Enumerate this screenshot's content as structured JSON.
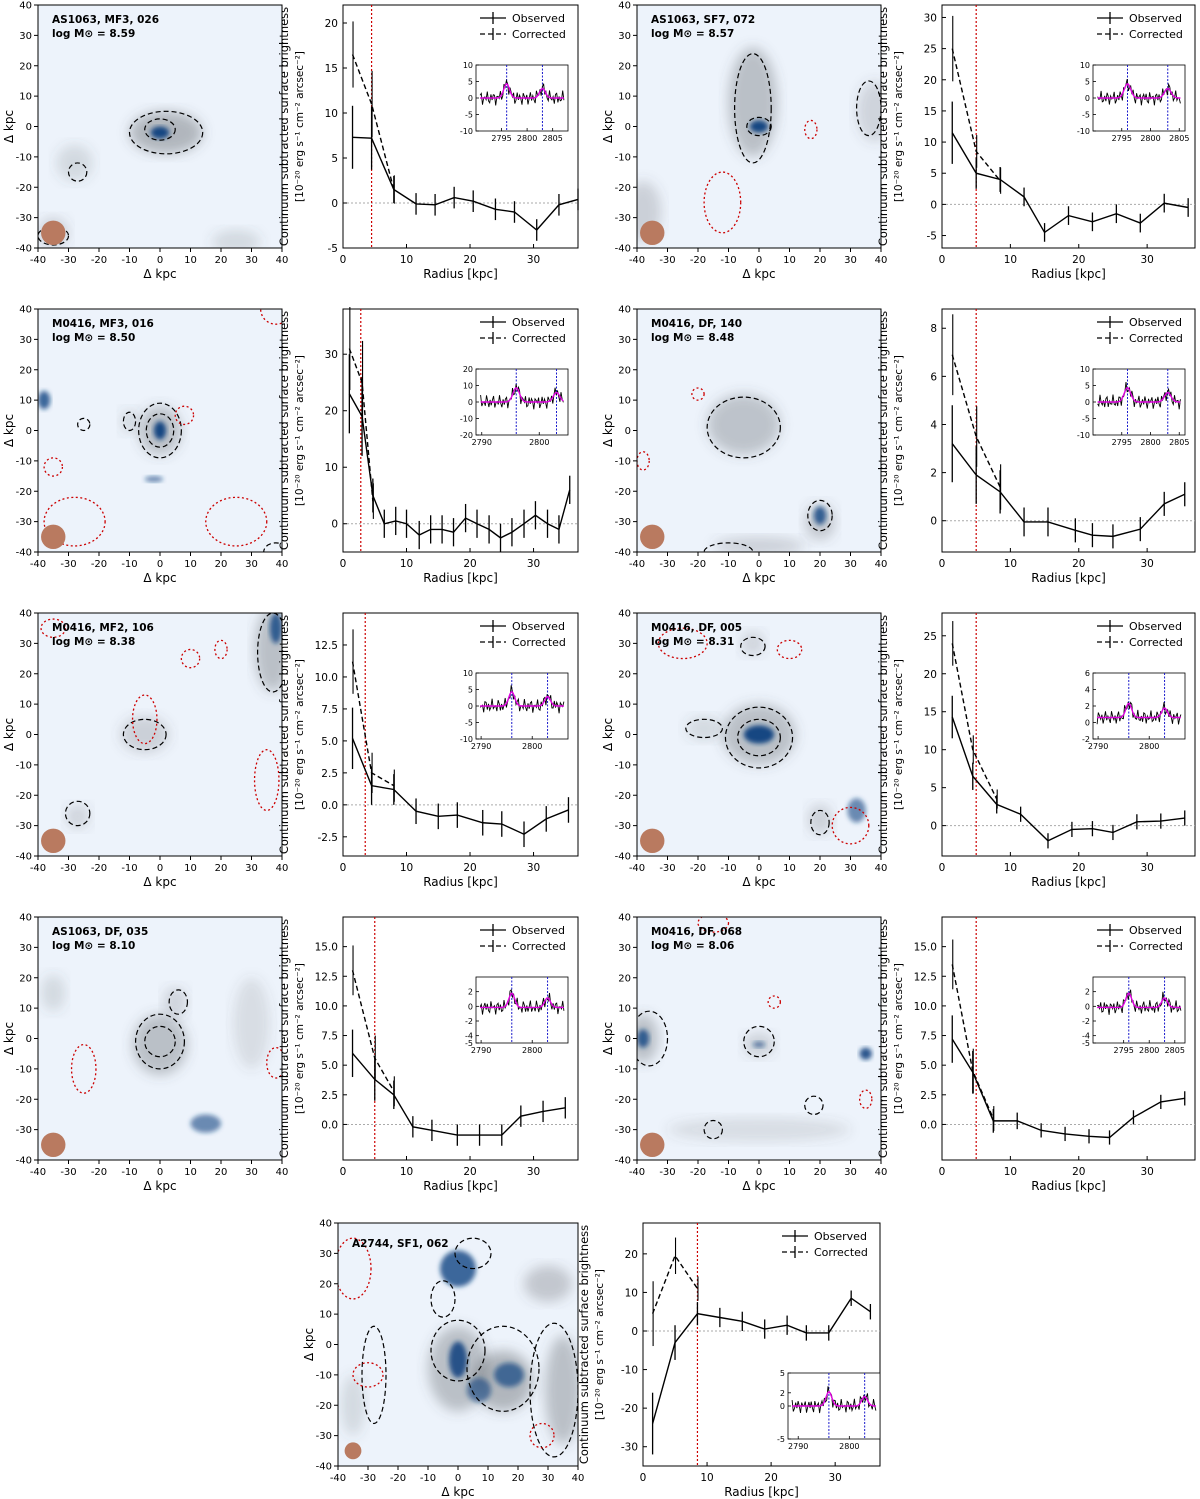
{
  "figure": {
    "map_xlabel": "Δ kpc",
    "map_ylabel": "Δ kpc",
    "profile_xlabel": "Radius [kpc]",
    "profile_ylabel_line1": "Continuum subtracted surface brightness",
    "profile_ylabel_line2": "[10⁻²⁰ erg s⁻¹ cm⁻² arcsec⁻²]",
    "legend_observed": "Observed",
    "legend_corrected": "Corrected",
    "map_ticks": [
      "-40",
      "-30",
      "-20",
      "-10",
      "0",
      "10",
      "20",
      "30",
      "40"
    ],
    "colors": {
      "observed": "#000000",
      "corrected": "#000000",
      "psf_line": "#cc0000",
      "zero_line": "#aaaaaa",
      "psf_disk": "#b97a60",
      "inset_model": "#e000e0",
      "inset_line_markers": "#1a1acc",
      "map_background": "#edf3fb"
    }
  },
  "panels": [
    {
      "name": "AS1063, MF3, 026",
      "mass": "log M⊙ = 8.59"
    },
    {
      "name": "AS1063, SF7, 072",
      "mass": "log M⊙ = 8.57"
    },
    {
      "name": "M0416, MF3, 016",
      "mass": "log M⊙ = 8.50"
    },
    {
      "name": "M0416, DF, 140",
      "mass": "log M⊙ = 8.48"
    },
    {
      "name": "M0416, MF2, 106",
      "mass": "log M⊙ = 8.38"
    },
    {
      "name": "M0416, DF, 005",
      "mass": "log M⊙ = 8.31"
    },
    {
      "name": "AS1063, DF, 035",
      "mass": "log M⊙ = 8.10"
    },
    {
      "name": "M0416, DF, 068",
      "mass": "log M⊙ = 8.06"
    },
    {
      "name": "A2744, SF1, 062",
      "mass": ""
    }
  ],
  "chart_data": [
    {
      "type": "line",
      "panel": "AS1063, MF3, 026",
      "xlim": [
        0,
        37
      ],
      "ylim": [
        -5,
        22
      ],
      "yticks": [
        -5,
        0,
        5,
        10,
        15,
        20
      ],
      "xticks": [
        0,
        10,
        20,
        30
      ],
      "psf_radius": 4.5,
      "x": [
        1.5,
        4.5,
        8,
        11.5,
        14.5,
        17.5,
        20.5,
        24,
        27,
        30.5,
        34,
        37
      ],
      "observed": [
        7.3,
        7.2,
        1.5,
        -0.1,
        -0.2,
        0.6,
        0.2,
        -0.7,
        -1.0,
        -3.0,
        -0.2,
        0.4
      ],
      "observed_err": [
        3.5,
        3.5,
        1.5,
        1.2,
        1.2,
        1.2,
        1.2,
        1.2,
        1.2,
        1.2,
        1.2,
        1.2
      ],
      "corrected": [
        16.5,
        11.0,
        1.5
      ],
      "inset": {
        "xlim": [
          2790,
          2808
        ],
        "ylim": [
          -10,
          10
        ],
        "yticks": [
          -10,
          -5,
          0,
          5,
          10
        ],
        "xticks": [
          2795,
          2800,
          2805
        ],
        "lines": [
          2796,
          2803
        ]
      }
    },
    {
      "type": "line",
      "panel": "AS1063, SF7, 072",
      "xlim": [
        0,
        37
      ],
      "ylim": [
        -7,
        32
      ],
      "yticks": [
        -5,
        0,
        5,
        10,
        15,
        20,
        25,
        30
      ],
      "xticks": [
        0,
        10,
        20,
        30
      ],
      "psf_radius": 5.0,
      "x": [
        1.5,
        5,
        8.5,
        12,
        15,
        18.5,
        22,
        25.5,
        29,
        32.5,
        36
      ],
      "observed": [
        11.5,
        5.0,
        4.0,
        1.2,
        -4.5,
        -1.8,
        -2.8,
        -1.5,
        -3.0,
        0.2,
        -0.5
      ],
      "observed_err": [
        5.0,
        2.5,
        2.0,
        1.5,
        1.5,
        1.5,
        1.5,
        1.5,
        1.5,
        1.5,
        1.5
      ],
      "corrected": [
        25.0,
        8.5,
        3.8
      ],
      "inset": {
        "xlim": [
          2790,
          2806
        ],
        "ylim": [
          -10,
          10
        ],
        "yticks": [
          -10,
          -5,
          0,
          5,
          10
        ],
        "xticks": [
          2795,
          2800,
          2805
        ],
        "lines": [
          2796,
          2803
        ]
      }
    },
    {
      "type": "line",
      "panel": "M0416, MF3, 016",
      "xlim": [
        0,
        37
      ],
      "ylim": [
        -5,
        38
      ],
      "yticks": [
        0,
        10,
        20,
        30
      ],
      "xticks": [
        0,
        10,
        20,
        30
      ],
      "psf_radius": 2.8,
      "x": [
        1,
        3,
        4.7,
        6.5,
        8.3,
        10,
        12,
        13.8,
        15.6,
        17.4,
        19.3,
        21.1,
        23,
        24.8,
        26.6,
        28.5,
        30.3,
        32.2,
        34,
        35.7
      ],
      "observed": [
        23,
        19,
        5,
        0,
        0.5,
        0,
        -2,
        -1,
        -1,
        -1.5,
        1,
        0,
        -1,
        -2.5,
        -1.5,
        0,
        1.5,
        0,
        -1,
        6
      ],
      "observed_err": [
        7,
        7,
        3,
        2.5,
        2.5,
        2.5,
        2.5,
        2.5,
        2.5,
        2.5,
        2.5,
        2.5,
        2.5,
        2.5,
        2.5,
        2.5,
        2.5,
        2.5,
        2.5,
        2.5
      ],
      "corrected": [
        31,
        25,
        4
      ],
      "inset": {
        "xlim": [
          2789,
          2805
        ],
        "ylim": [
          -20,
          20
        ],
        "yticks": [
          -20,
          -10,
          0,
          10,
          20
        ],
        "xticks": [
          2790,
          2800
        ],
        "lines": [
          2796,
          2803
        ]
      }
    },
    {
      "type": "line",
      "panel": "M0416, DF, 140",
      "xlim": [
        0,
        37
      ],
      "ylim": [
        -1.3,
        8.8
      ],
      "yticks": [
        0,
        2,
        4,
        6,
        8
      ],
      "xticks": [
        0,
        10,
        20,
        30
      ],
      "psf_radius": 5.0,
      "x": [
        1.5,
        5,
        8.5,
        12,
        15.5,
        19.5,
        22,
        25,
        29,
        32.5,
        35.5
      ],
      "observed": [
        3.2,
        1.9,
        1.2,
        -0.05,
        -0.05,
        -0.4,
        -0.6,
        -0.65,
        -0.35,
        0.7,
        1.1
      ],
      "observed_err": [
        1.6,
        1.2,
        0.9,
        0.6,
        0.6,
        0.5,
        0.5,
        0.5,
        0.5,
        0.5,
        0.5
      ],
      "corrected": [
        6.9,
        3.5,
        1.4
      ],
      "inset": {
        "xlim": [
          2790,
          2806
        ],
        "ylim": [
          -10,
          10
        ],
        "yticks": [
          -10,
          -5,
          0,
          5,
          10
        ],
        "xticks": [
          2795,
          2800,
          2805
        ],
        "lines": [
          2796,
          2803
        ]
      }
    },
    {
      "type": "line",
      "panel": "M0416, MF2, 106",
      "xlim": [
        0,
        37
      ],
      "ylim": [
        -4,
        15
      ],
      "yticks": [
        -2.5,
        0.0,
        2.5,
        5.0,
        7.5,
        10.0,
        12.5
      ],
      "xticks": [
        0,
        10,
        20,
        30
      ],
      "psf_radius": 3.5,
      "x": [
        1.5,
        4.5,
        8,
        11.5,
        15,
        18,
        22,
        25,
        28.5,
        32,
        35.5
      ],
      "observed": [
        5.2,
        1.5,
        1.2,
        -0.5,
        -0.9,
        -0.8,
        -1.4,
        -1.5,
        -2.3,
        -1.1,
        -0.4
      ],
      "observed_err": [
        2.4,
        1.5,
        1.2,
        1.0,
        1.0,
        1.0,
        1.0,
        1.0,
        1.0,
        1.0,
        1.0
      ],
      "corrected": [
        11.2,
        2.5,
        1.5
      ],
      "inset": {
        "xlim": [
          2789,
          2807
        ],
        "ylim": [
          -10,
          10
        ],
        "yticks": [
          -10,
          -5,
          0,
          5,
          10
        ],
        "xticks": [
          2790,
          2800
        ],
        "lines": [
          2796,
          2803
        ]
      }
    },
    {
      "type": "line",
      "panel": "M0416, DF, 005",
      "xlim": [
        0,
        37
      ],
      "ylim": [
        -4,
        28
      ],
      "yticks": [
        0,
        5,
        10,
        15,
        20,
        25
      ],
      "xticks": [
        0,
        10,
        20,
        30
      ],
      "psf_radius": 5.0,
      "x": [
        1.5,
        4.5,
        8,
        11.5,
        15.5,
        19,
        22,
        25,
        28.5,
        32,
        35.5
      ],
      "observed": [
        14.3,
        6.5,
        2.8,
        1.5,
        -2.0,
        -0.5,
        -0.4,
        -0.9,
        0.5,
        0.6,
        1.0
      ],
      "observed_err": [
        2.8,
        1.8,
        1.2,
        1.0,
        1.0,
        1.0,
        1.0,
        1.0,
        1.0,
        1.0,
        1.0
      ],
      "corrected": [
        24.0,
        10.0,
        3.5
      ],
      "inset": {
        "xlim": [
          2789,
          2807
        ],
        "ylim": [
          -2,
          6
        ],
        "yticks": [
          -2,
          0,
          2,
          4,
          6
        ],
        "xticks": [
          2790,
          2800
        ],
        "lines": [
          2796,
          2803
        ]
      }
    },
    {
      "type": "line",
      "panel": "AS1063, DF, 035",
      "xlim": [
        0,
        37
      ],
      "ylim": [
        -3,
        17.5
      ],
      "yticks": [
        0.0,
        2.5,
        5.0,
        7.5,
        10.0,
        12.5,
        15.0
      ],
      "xticks": [
        0,
        10,
        20,
        30
      ],
      "psf_radius": 5.0,
      "x": [
        1.5,
        5,
        8,
        11,
        14,
        18,
        21.5,
        25,
        28,
        31.5,
        35
      ],
      "observed": [
        6.0,
        3.8,
        2.5,
        -0.2,
        -0.5,
        -0.9,
        -0.9,
        -0.9,
        0.7,
        1.1,
        1.4
      ],
      "observed_err": [
        2.0,
        1.8,
        1.2,
        0.9,
        0.9,
        0.9,
        0.9,
        0.9,
        0.9,
        0.9,
        0.9
      ],
      "corrected": [
        13.0,
        5.6,
        2.8
      ],
      "inset": {
        "xlim": [
          2789,
          2807
        ],
        "ylim": [
          -5,
          4
        ],
        "yticks": [
          -5,
          -4,
          -2,
          0,
          2
        ],
        "xticks": [
          2790,
          2800
        ],
        "lines": [
          2796,
          2803
        ]
      }
    },
    {
      "type": "line",
      "panel": "M0416, DF, 068",
      "xlim": [
        0,
        37
      ],
      "ylim": [
        -3,
        17.5
      ],
      "yticks": [
        0.0,
        2.5,
        5.0,
        7.5,
        10.0,
        12.5,
        15.0
      ],
      "xticks": [
        0,
        10,
        20,
        30
      ],
      "psf_radius": 5.0,
      "x": [
        1.5,
        4.5,
        7.5,
        11,
        14.5,
        18,
        21.5,
        24.5,
        28,
        32,
        35.5
      ],
      "observed": [
        7.2,
        4.4,
        0.3,
        0.3,
        -0.5,
        -0.8,
        -1.0,
        -1.1,
        0.6,
        1.9,
        2.2
      ],
      "observed_err": [
        2.0,
        1.8,
        1.0,
        0.7,
        0.6,
        0.6,
        0.6,
        0.6,
        0.6,
        0.6,
        0.6
      ],
      "corrected": [
        13.5,
        4.5,
        0.5
      ],
      "inset": {
        "xlim": [
          2789,
          2807
        ],
        "ylim": [
          -5,
          4
        ],
        "yticks": [
          -5,
          -4,
          -2,
          0,
          2
        ],
        "xticks": [
          2795,
          2800,
          2805
        ],
        "lines": [
          2796,
          2803
        ]
      }
    },
    {
      "type": "line",
      "panel": "A2744, SF1, 062",
      "xlim": [
        0,
        37
      ],
      "ylim": [
        -35,
        28
      ],
      "yticks": [
        -30,
        -20,
        -10,
        0,
        10,
        20
      ],
      "xticks": [
        0,
        10,
        20,
        30
      ],
      "psf_radius": 8.5,
      "x": [
        1.5,
        5,
        8.5,
        12,
        15.5,
        19,
        22.5,
        25.5,
        29,
        32.5,
        35.5
      ],
      "observed": [
        -24,
        -3,
        4.5,
        3.5,
        2.5,
        0.5,
        1.5,
        -0.5,
        -0.5,
        8.5,
        5.0
      ],
      "observed_err": [
        8.0,
        4.5,
        3.0,
        2.5,
        2.5,
        2.5,
        2.5,
        2.0,
        2.0,
        2.0,
        2.0
      ],
      "corrected": [
        4.5,
        19.5,
        11.0
      ],
      "inset": {
        "xlim": [
          2788,
          2806
        ],
        "ylim": [
          -5,
          5
        ],
        "yticks": [
          -5,
          0,
          2,
          5
        ],
        "xticks": [
          2790,
          2800
        ],
        "lines": [
          2796,
          2803
        ]
      }
    }
  ]
}
